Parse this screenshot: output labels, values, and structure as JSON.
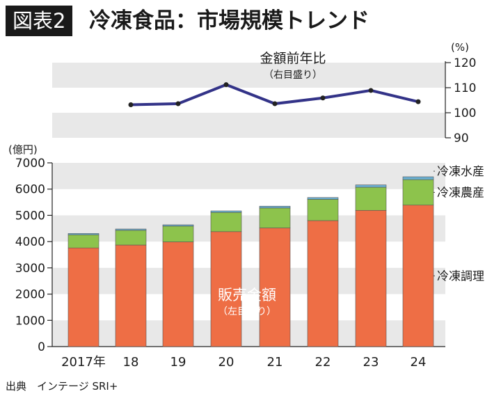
{
  "header": {
    "figure_label": "図表2",
    "title": "冷凍食品：市場規模トレンド"
  },
  "source": "出典　インテージ SRI+",
  "colors": {
    "band": "#e8e8e8",
    "cooked": "#ee6e45",
    "agri": "#8dc34c",
    "seafood": "#6baed0",
    "line": "#333388",
    "axis": "#222222"
  },
  "chart_data": [
    {
      "type": "line",
      "title": "金額前年比",
      "subtitle": "（右目盛り）",
      "y_unit": "(%)",
      "ylim": [
        90,
        120
      ],
      "yticks": [
        90,
        100,
        110,
        120
      ],
      "axis_position": "right",
      "grid": "alternating bands",
      "series": [
        {
          "name": "金額前年比",
          "values": [
            103.2,
            103.6,
            111.2,
            103.6,
            105.9,
            108.9,
            104.4
          ]
        }
      ],
      "x": [
        "18",
        "19",
        "20",
        "21",
        "22",
        "23",
        "24"
      ]
    },
    {
      "type": "bar",
      "stacked": true,
      "y_unit": "(億円)",
      "ylim": [
        0,
        7000
      ],
      "yticks": [
        0,
        1000,
        2000,
        3000,
        4000,
        5000,
        6000,
        7000
      ],
      "grid": "alternating bands",
      "annotation": "販売金額",
      "annotation_sub": "（左目盛り）",
      "categories": [
        "2017年",
        "18",
        "19",
        "20",
        "21",
        "22",
        "23",
        "24"
      ],
      "series": [
        {
          "name": "冷凍調理",
          "values": [
            3760,
            3870,
            3990,
            4380,
            4520,
            4800,
            5190,
            5390
          ]
        },
        {
          "name": "冷凍農産",
          "values": [
            500,
            560,
            600,
            730,
            760,
            810,
            880,
            970
          ]
        },
        {
          "name": "冷凍水産",
          "values": [
            50,
            50,
            50,
            60,
            70,
            70,
            90,
            110
          ]
        }
      ],
      "legend": "right, beside bars"
    }
  ]
}
